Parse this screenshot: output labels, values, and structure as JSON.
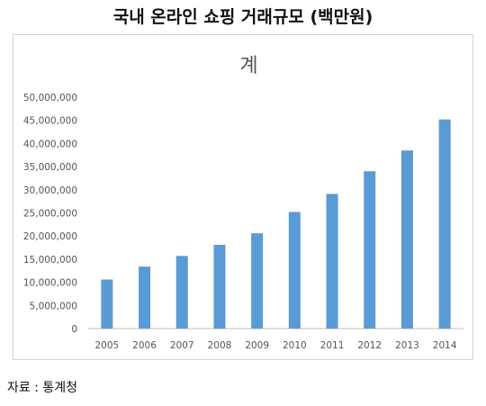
{
  "page": {
    "heading": "국내 온라인 쇼핑 거래규모 (백만원)",
    "source": "자료 : 통계청"
  },
  "chart_data": {
    "type": "bar",
    "title": "계",
    "xlabel": "",
    "ylabel": "",
    "categories": [
      "2005",
      "2006",
      "2007",
      "2008",
      "2009",
      "2010",
      "2011",
      "2012",
      "2013",
      "2014"
    ],
    "values": [
      10600000,
      13400000,
      15700000,
      18100000,
      20600000,
      25200000,
      29100000,
      34000000,
      38500000,
      45200000
    ],
    "ylim": [
      0,
      50000000
    ],
    "yticks": [
      "0",
      "5,000,000",
      "10,000,000",
      "15,000,000",
      "20,000,000",
      "25,000,000",
      "30,000,000",
      "35,000,000",
      "40,000,000",
      "45,000,000",
      "50,000,000"
    ],
    "grid": false,
    "legend": "none",
    "bar_color": "#5b9bd5"
  }
}
